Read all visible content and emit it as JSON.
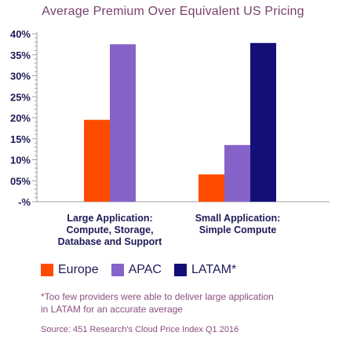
{
  "chart_data": {
    "type": "bar",
    "title": "Average Premium Over Equivalent US Pricing",
    "categories": [
      [
        "Large Application:",
        "Compute, Storage,",
        "Database and Support"
      ],
      [
        "Small Application:",
        "Simple Compute"
      ]
    ],
    "series": [
      {
        "name": "Europe",
        "color": "#ff4b00",
        "values": [
          19.5,
          6.5
        ]
      },
      {
        "name": "APAC",
        "color": "#8663c8",
        "values": [
          37.5,
          13.5
        ]
      },
      {
        "name": "LATAM*",
        "color": "#140f78",
        "values": [
          null,
          37.8
        ]
      }
    ],
    "y_ticks": [
      {
        "value": 40,
        "label": "40%"
      },
      {
        "value": 35,
        "label": "35%"
      },
      {
        "value": 30,
        "label": "30%"
      },
      {
        "value": 25,
        "label": "25%"
      },
      {
        "value": 20,
        "label": "20%"
      },
      {
        "value": 15,
        "label": "15%"
      },
      {
        "value": 10,
        "label": "10%"
      },
      {
        "value": 5,
        "label": "05%"
      },
      {
        "value": 0,
        "label": "-%"
      }
    ],
    "ylim": [
      0,
      40
    ],
    "xlabel": "",
    "ylabel": "",
    "legend_position": "bottom-left",
    "grid": false
  },
  "footnote_lines": [
    "*Too few providers were able to deliver large application",
    "in LATAM for an accurate average"
  ],
  "source": "Source: 451 Research's Cloud Price Index Q1 2016"
}
